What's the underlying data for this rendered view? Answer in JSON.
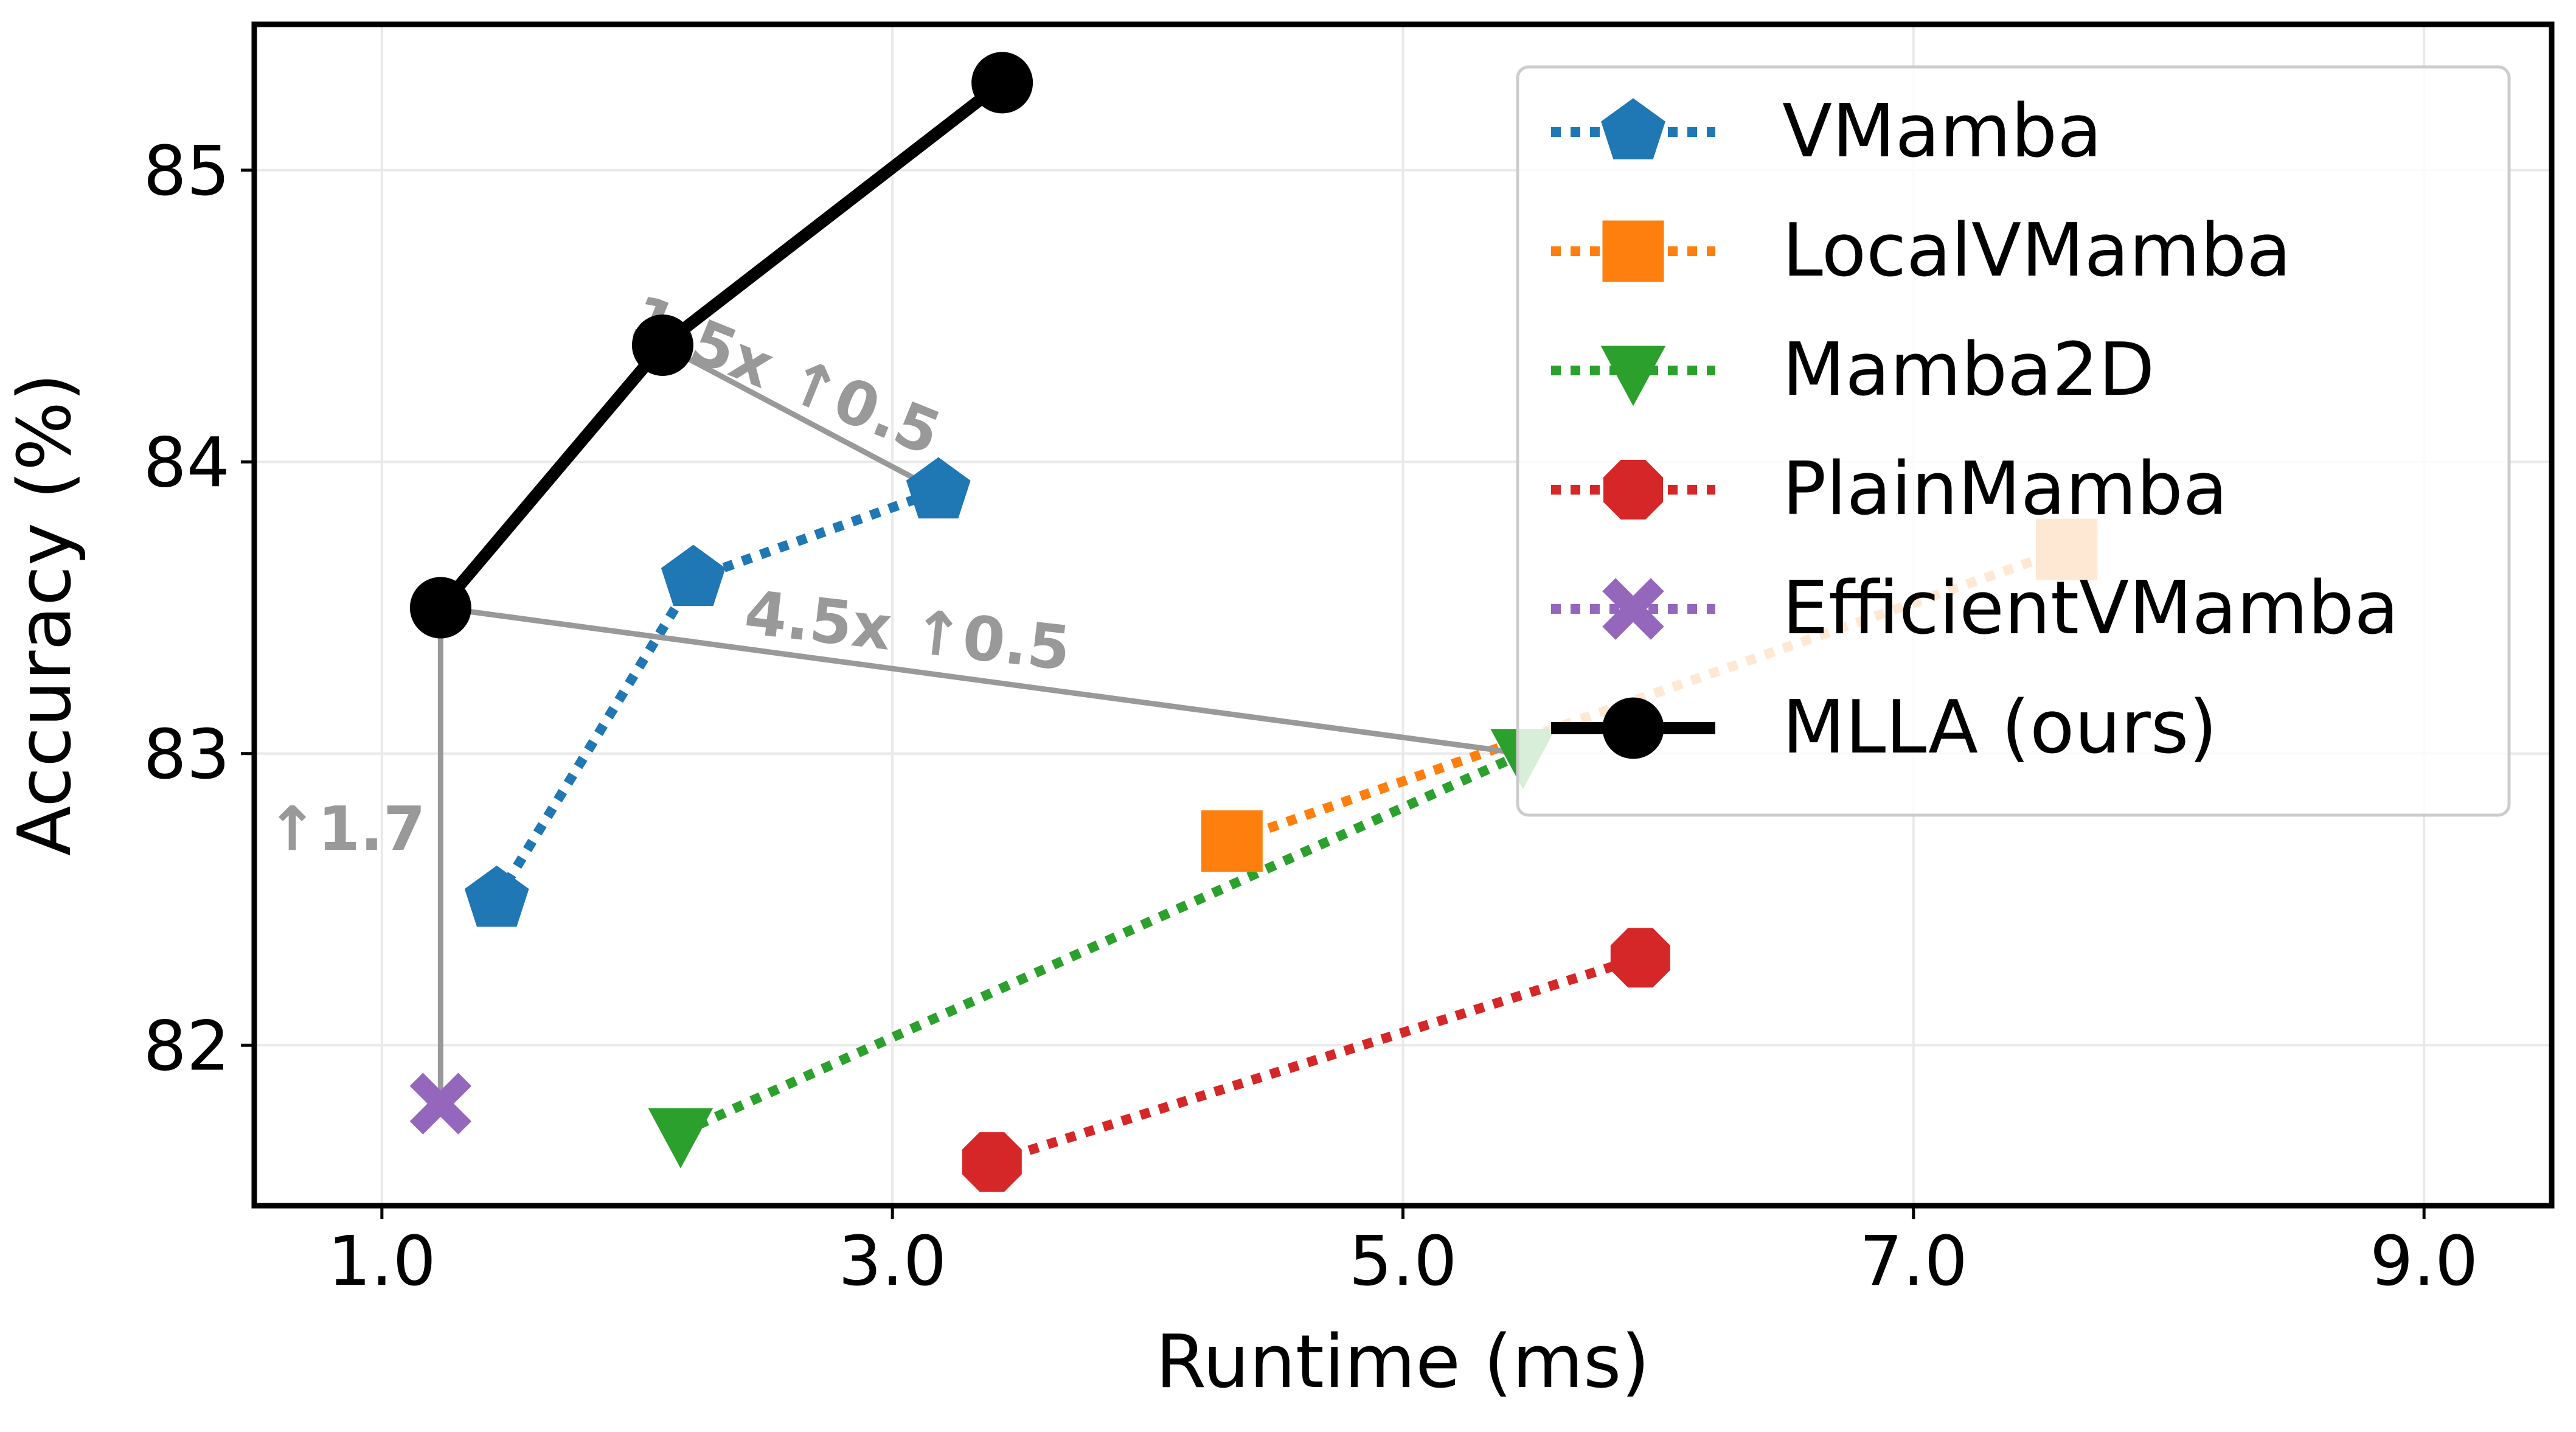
{
  "chart_data": {
    "type": "line",
    "title": "",
    "xlabel": "Runtime (ms)",
    "ylabel": "Accuracy (%)",
    "xlim": [
      0.5,
      9.5
    ],
    "ylim": [
      81.45,
      85.5
    ],
    "xticks": [
      1,
      3,
      5,
      7,
      9
    ],
    "xtick_labels": [
      "1.0",
      "3.0",
      "5.0",
      "7.0",
      "9.0"
    ],
    "yticks": [
      82,
      83,
      84,
      85
    ],
    "ytick_labels": [
      "82",
      "83",
      "84",
      "85"
    ],
    "grid": true,
    "legend_position": "top-right",
    "series": [
      {
        "name": "VMamba",
        "color": "#1f77b4",
        "marker": "pentagon",
        "line": "dotted",
        "x": [
          1.45,
          2.22,
          3.18
        ],
        "y": [
          82.5,
          83.6,
          83.9
        ]
      },
      {
        "name": "LocalVMamba",
        "color": "#ff7f0e",
        "marker": "square",
        "line": "dotted",
        "x": [
          4.33,
          7.6
        ],
        "y": [
          82.7,
          83.7
        ]
      },
      {
        "name": "Mamba2D",
        "color": "#2ca02c",
        "marker": "triangle-down",
        "line": "dotted",
        "x": [
          2.17,
          5.47
        ],
        "y": [
          81.7,
          83.0
        ]
      },
      {
        "name": "PlainMamba",
        "color": "#d62728",
        "marker": "octagon",
        "line": "dotted",
        "x": [
          3.39,
          5.93
        ],
        "y": [
          81.6,
          82.3
        ]
      },
      {
        "name": "EfficientVMamba",
        "color": "#9467bd",
        "marker": "x",
        "line": "dotted",
        "x": [
          1.23
        ],
        "y": [
          81.8
        ]
      },
      {
        "name": "MLLA (ours)",
        "color": "#000000",
        "marker": "circle",
        "line": "solid",
        "x": [
          1.23,
          2.1,
          3.43
        ],
        "y": [
          83.5,
          84.4,
          85.3
        ]
      }
    ],
    "annotations": [
      {
        "text": "1.5x ↑0.5",
        "from": [
          3.18,
          83.9
        ],
        "to": [
          2.1,
          84.4
        ],
        "label_at": [
          2.55,
          84.23
        ],
        "rotation": 22
      },
      {
        "text": "4.5x ↑0.5",
        "from": [
          5.47,
          83.0
        ],
        "to": [
          1.23,
          83.5
        ],
        "label_at": [
          3.05,
          83.35
        ],
        "rotation": 6.5
      },
      {
        "text": "↑1.7",
        "from": [
          1.23,
          81.8
        ],
        "to": [
          1.23,
          83.5
        ],
        "label_at": [
          0.86,
          82.67
        ],
        "rotation": 0
      }
    ]
  }
}
